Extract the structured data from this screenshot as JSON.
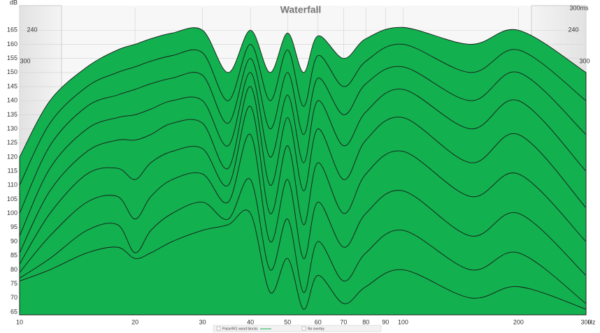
{
  "chart_data": {
    "type": "waterfall",
    "title": "Waterfall",
    "y_label": "dB",
    "x_label": "Hz",
    "log_x": true,
    "grid": true,
    "x": [
      10,
      12,
      15,
      18,
      20,
      22,
      25,
      30,
      35,
      40,
      45,
      50,
      55,
      60,
      70,
      80,
      100,
      150,
      200,
      300
    ],
    "xlim": [
      10,
      300
    ],
    "xticks": [
      10,
      20,
      30,
      40,
      50,
      60,
      70,
      80,
      90,
      100,
      200,
      300
    ],
    "ylim": [
      64,
      173
    ],
    "yticks": [
      65,
      70,
      75,
      80,
      85,
      90,
      95,
      100,
      105,
      110,
      115,
      120,
      125,
      130,
      135,
      140,
      145,
      150,
      155,
      160,
      165
    ],
    "time_labels": [
      "240",
      "300",
      "300ms"
    ],
    "legend_items": [
      "Pulse#R1 wood blocks",
      "No overlay"
    ],
    "color": "#12b04e",
    "line_color": "#1a1a1a",
    "series": [
      {
        "values": [
          120,
          140,
          152,
          158,
          160,
          162,
          164,
          165,
          150,
          165,
          150,
          164,
          150,
          163,
          155,
          162,
          166,
          160,
          165,
          150
        ]
      },
      {
        "values": [
          110,
          132,
          145,
          150,
          152,
          154,
          156,
          157,
          140,
          160,
          140,
          158,
          138,
          156,
          145,
          154,
          160,
          150,
          158,
          140
        ]
      },
      {
        "values": [
          100,
          124,
          138,
          142,
          144,
          146,
          148,
          149,
          132,
          155,
          130,
          150,
          128,
          148,
          135,
          146,
          152,
          140,
          150,
          128
        ]
      },
      {
        "values": [
          92,
          116,
          130,
          134,
          135,
          137,
          140,
          140,
          124,
          150,
          120,
          142,
          118,
          140,
          124,
          136,
          144,
          130,
          140,
          115
        ]
      },
      {
        "values": [
          86,
          108,
          122,
          126,
          126,
          128,
          132,
          132,
          116,
          145,
          110,
          134,
          108,
          130,
          112,
          126,
          134,
          118,
          128,
          102
        ]
      },
      {
        "values": [
          82,
          100,
          114,
          116,
          112,
          118,
          122,
          123,
          110,
          138,
          100,
          124,
          96,
          118,
          100,
          114,
          122,
          106,
          114,
          90
        ]
      },
      {
        "values": [
          79,
          92,
          104,
          106,
          98,
          106,
          112,
          114,
          104,
          128,
          90,
          112,
          84,
          104,
          88,
          100,
          108,
          92,
          100,
          78
        ]
      },
      {
        "values": [
          77,
          84,
          94,
          96,
          86,
          94,
          100,
          104,
          98,
          112,
          80,
          98,
          72,
          90,
          76,
          86,
          94,
          80,
          86,
          68
        ]
      },
      {
        "values": [
          76,
          80,
          86,
          88,
          84,
          86,
          90,
          94,
          96,
          100,
          72,
          84,
          66,
          78,
          68,
          74,
          80,
          70,
          74,
          66
        ]
      }
    ]
  }
}
